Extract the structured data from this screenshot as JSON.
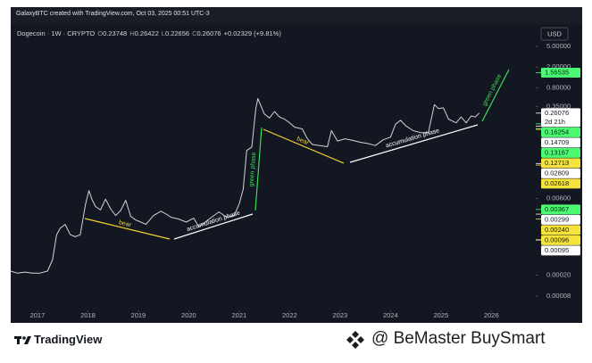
{
  "header": {
    "credit": "GalaxyBTC created with TradingView.com, Oct 03, 2025 00:51 UTC-3"
  },
  "chart_data": {
    "type": "line",
    "title": "Dogecoin · 1W · CRYPTO",
    "ohlc": [
      {
        "key": "O",
        "value": 0.23748
      },
      {
        "key": "H",
        "value": 0.26422
      },
      {
        "key": "L",
        "value": 0.22656
      },
      {
        "key": "C",
        "value": 0.26076
      }
    ],
    "change": "+0.02329 (+9.81%)",
    "currency": "USD",
    "color": "#d1d4dc",
    "x": [
      2016.47,
      2016.6,
      2016.75,
      2016.9,
      2017.05,
      2017.2,
      2017.3,
      2017.38,
      2017.45,
      2017.55,
      2017.65,
      2017.75,
      2017.85,
      2017.95,
      2018.02,
      2018.08,
      2018.15,
      2018.25,
      2018.35,
      2018.45,
      2018.55,
      2018.65,
      2018.75,
      2018.85,
      2018.95,
      2019.05,
      2019.15,
      2019.3,
      2019.45,
      2019.55,
      2019.65,
      2019.8,
      2019.95,
      2020.1,
      2020.2,
      2020.3,
      2020.45,
      2020.6,
      2020.75,
      2020.9,
      2021.0,
      2021.08,
      2021.15,
      2021.25,
      2021.33,
      2021.37,
      2021.42,
      2021.5,
      2021.6,
      2021.7,
      2021.8,
      2021.9,
      2022.0,
      2022.1,
      2022.25,
      2022.35,
      2022.45,
      2022.6,
      2022.75,
      2022.83,
      2022.95,
      2023.1,
      2023.25,
      2023.4,
      2023.55,
      2023.7,
      2023.85,
      2024.0,
      2024.1,
      2024.2,
      2024.3,
      2024.45,
      2024.6,
      2024.75,
      2024.87,
      2024.95,
      2025.05,
      2025.15,
      2025.3,
      2025.4,
      2025.5,
      2025.6,
      2025.68,
      2025.76
    ],
    "values": [
      0.00024,
      0.00022,
      0.00023,
      0.00022,
      0.00022,
      0.00024,
      0.0004,
      0.0012,
      0.0016,
      0.0019,
      0.0012,
      0.0011,
      0.0012,
      0.0045,
      0.0085,
      0.0058,
      0.0042,
      0.0036,
      0.0058,
      0.0038,
      0.0028,
      0.0035,
      0.0055,
      0.0027,
      0.0023,
      0.0021,
      0.0019,
      0.0028,
      0.0034,
      0.003,
      0.0026,
      0.0024,
      0.0021,
      0.0025,
      0.0017,
      0.002,
      0.0026,
      0.0033,
      0.0026,
      0.0028,
      0.0047,
      0.009,
      0.05,
      0.058,
      0.32,
      0.5,
      0.38,
      0.25,
      0.21,
      0.28,
      0.22,
      0.2,
      0.17,
      0.14,
      0.13,
      0.085,
      0.065,
      0.062,
      0.059,
      0.12,
      0.076,
      0.084,
      0.078,
      0.072,
      0.068,
      0.062,
      0.08,
      0.09,
      0.16,
      0.19,
      0.15,
      0.12,
      0.11,
      0.11,
      0.38,
      0.32,
      0.33,
      0.2,
      0.17,
      0.22,
      0.17,
      0.23,
      0.22,
      0.26076
    ],
    "xlim": [
      2016.47,
      2026.88
    ],
    "xticks": [
      2017,
      2018,
      2019,
      2020,
      2021,
      2022,
      2023,
      2024,
      2025,
      2026
    ],
    "ylim": [
      2.43e-05,
      12.9
    ],
    "log_scale": true,
    "grid": false,
    "yticks": [
      {
        "value": 5,
        "label": "5.00000"
      },
      {
        "value": 2,
        "label": "2.00000"
      },
      {
        "value": 0.8,
        "label": "0.80000"
      },
      {
        "value": 0.35,
        "label": "0.35000"
      },
      {
        "value": 0.006,
        "label": "0.00600"
      },
      {
        "value": 0.0002,
        "label": "0.00020"
      },
      {
        "value": 8e-05,
        "label": "0.00008"
      }
    ],
    "price_labels": [
      {
        "value": 1.56535,
        "color": "#4cfa72"
      },
      {
        "value": 0.26076,
        "color": "#ffffff",
        "countdown": "2d 21h"
      },
      {
        "value": 0.16254,
        "color": "#4cfa72"
      },
      {
        "value": 0.14709,
        "color": "#ffffff"
      },
      {
        "value": 0.13167,
        "color": "#4cfa72"
      },
      {
        "value": 0.12713,
        "color": "#f5e33b"
      },
      {
        "value": 0.02809,
        "color": "#ffffff"
      },
      {
        "value": 0.02618,
        "color": "#f5e33b"
      },
      {
        "value": 0.00367,
        "color": "#4cfa72"
      },
      {
        "value": 0.00299,
        "color": "#ffffff"
      },
      {
        "value": 0.0024,
        "label": "0.00240",
        "color": "#f5e33b"
      },
      {
        "value": 0.00096,
        "color": "#f5e33b"
      },
      {
        "value": 0.00095,
        "color": "#ffffff"
      }
    ],
    "annotations": [
      {
        "text": "bear",
        "color": "#f5d22e"
      },
      {
        "text": "accumulation phase",
        "color": "#ffffff"
      },
      {
        "text": "green phase",
        "color": "#3ddc57"
      },
      {
        "text": "bear",
        "color": "#f5d22e"
      },
      {
        "text": "accumulation phase",
        "color": "#ffffff"
      },
      {
        "text": "green phase",
        "color": "#3ddc57"
      }
    ]
  },
  "footer": {
    "brand": "TradingView",
    "credit": "@ BeMaster BuySmart"
  }
}
